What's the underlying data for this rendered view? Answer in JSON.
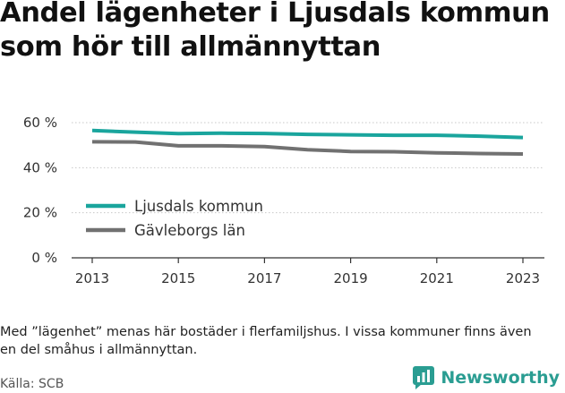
{
  "title": "Andel lägenheter i Ljusdals kommun som hör till allmännyttan",
  "note": "Med ”lägenhet” menas här bostäder i flerfamiljshus. I vissa kommuner finns även en del småhus i allmännyttan.",
  "source": "Källa: SCB",
  "brand": {
    "name": "Newsworthy",
    "color": "#2a9d92"
  },
  "chart_data": {
    "type": "line",
    "title": "Andel lägenheter i Ljusdals kommun som hör till allmännyttan",
    "xlabel": "",
    "ylabel": "",
    "x": [
      2013,
      2014,
      2015,
      2016,
      2017,
      2018,
      2019,
      2020,
      2021,
      2022,
      2023
    ],
    "x_ticks": [
      "2013",
      "2015",
      "2017",
      "2019",
      "2021",
      "2023"
    ],
    "y_ticks": [
      "0 %",
      "20 %",
      "40 %",
      "60 %"
    ],
    "ylim": [
      0,
      60
    ],
    "grid": "horizontal",
    "legend_position": "left",
    "series": [
      {
        "name": "Ljusdals kommun",
        "color": "#1aa59d",
        "values": [
          56.5,
          55.8,
          55.1,
          55.3,
          55.2,
          54.8,
          54.6,
          54.4,
          54.4,
          54.0,
          53.4
        ]
      },
      {
        "name": "Gävleborgs län",
        "color": "#717171",
        "values": [
          51.5,
          51.4,
          49.7,
          49.7,
          49.4,
          48.0,
          47.2,
          47.1,
          46.6,
          46.3,
          46.1
        ]
      }
    ]
  }
}
